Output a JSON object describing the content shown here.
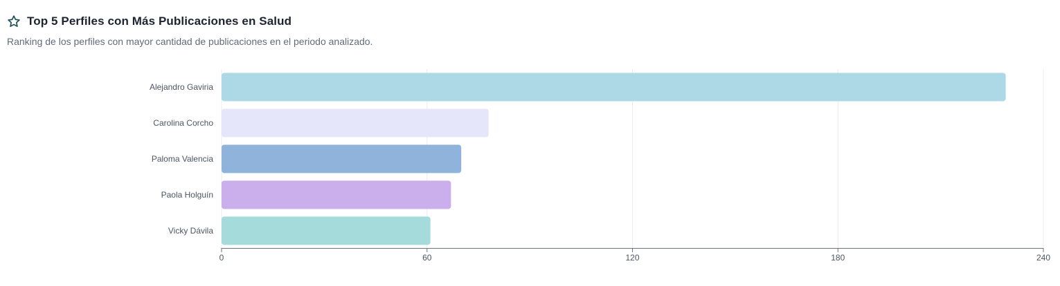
{
  "header": {
    "icon": "star-outline-icon",
    "title": "Top 5 Perfiles con Más Publicaciones en Salud",
    "subtitle": "Ranking de los perfiles con mayor cantidad de publicaciones en el periodo analizado."
  },
  "chart_data": {
    "type": "bar",
    "orientation": "horizontal",
    "categories": [
      "Alejandro Gaviria",
      "Carolina Corcho",
      "Paloma Valencia",
      "Paola Holguín",
      "Vicky Dávila"
    ],
    "values": [
      229,
      78,
      70,
      67,
      61
    ],
    "colors": [
      "#add8e6",
      "#e6e6fa",
      "#8fb3da",
      "#cbaeec",
      "#a6dbdb"
    ],
    "xlim": [
      0,
      240
    ],
    "xticks": [
      "0",
      "60",
      "120",
      "180",
      "240"
    ],
    "grid": true,
    "title": "",
    "xlabel": "",
    "ylabel": ""
  }
}
